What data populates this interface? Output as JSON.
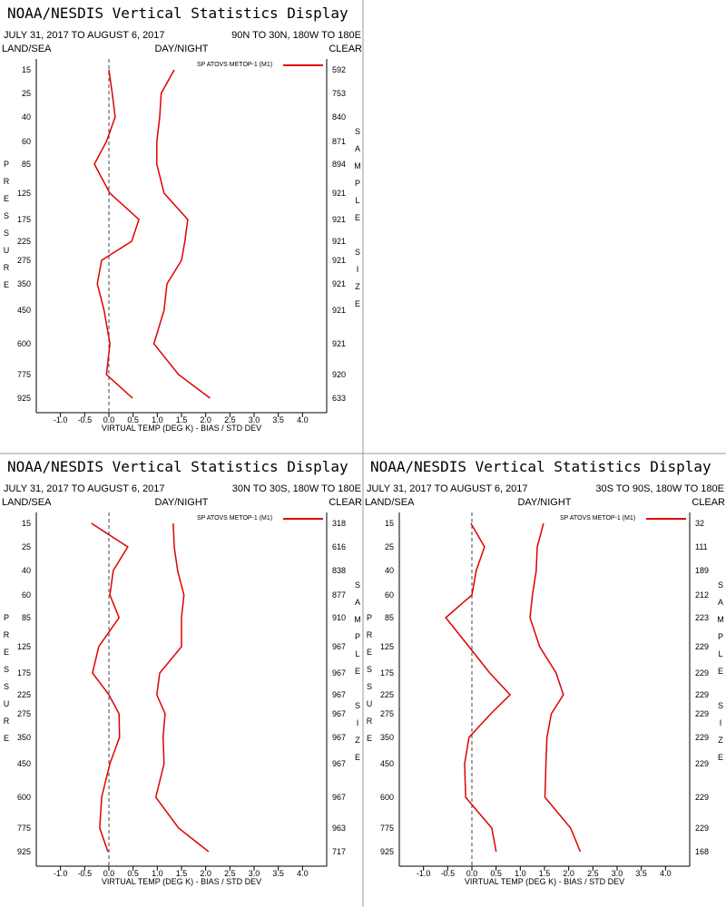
{
  "chart_data": [
    {
      "type": "line",
      "title": "NOAA/NESDIS Vertical Statistics Display",
      "subtitle": "JULY 31, 2017 TO AUGUST 6, 2017",
      "region": "90N TO 30N, 180W TO 180E",
      "left_header": "LAND/SEA",
      "center_header": "DAY/NIGHT",
      "right_header": "CLEAR",
      "y_label": "PRESSURE",
      "y2_label": "SAMPLE SIZE",
      "x_label": "VIRTUAL TEMP (DEG K) - BIAS / STD DEV",
      "categories": [
        "15",
        "25",
        "40",
        "60",
        "85",
        "125",
        "175",
        "225",
        "275",
        "350",
        "450",
        "600",
        "775",
        "925"
      ],
      "sample_size": [
        "592",
        "753",
        "840",
        "871",
        "894",
        "921",
        "921",
        "921",
        "921",
        "921",
        "921",
        "921",
        "920",
        "633"
      ],
      "xlim": [
        -1.5,
        4.5
      ],
      "xticks": [
        {
          "value": -1,
          "label": "-1.0"
        },
        {
          "value": -0.5,
          "label": "-0.5"
        },
        {
          "value": 0,
          "label": "0.0"
        },
        {
          "value": 0.5,
          "label": "0.5"
        },
        {
          "value": 1,
          "label": "1.0"
        },
        {
          "value": 1.5,
          "label": "1.5"
        },
        {
          "value": 2,
          "label": "2.0"
        },
        {
          "value": 2.5,
          "label": "2.5"
        },
        {
          "value": 3,
          "label": "3.0"
        },
        {
          "value": 3.5,
          "label": "3.5"
        },
        {
          "value": 4,
          "label": "4.0"
        }
      ],
      "series": [
        {
          "name": "SP ATOVS METOP-1 (M1)",
          "color": "#e00000",
          "bias": [
            0.0,
            0.07,
            0.13,
            -0.05,
            -0.3,
            0.02,
            0.62,
            0.47,
            -0.15,
            -0.24,
            -0.1,
            0.02,
            -0.05,
            0.49
          ],
          "std_dev": [
            1.35,
            1.08,
            1.05,
            0.99,
            0.99,
            1.14,
            1.63,
            1.57,
            1.5,
            1.2,
            1.14,
            0.93,
            1.44,
            2.09
          ]
        }
      ]
    },
    {
      "type": "line",
      "title": "NOAA/NESDIS Vertical Statistics Display",
      "subtitle": "JULY 31, 2017 TO AUGUST 6, 2017",
      "region": "30N TO 30S, 180W TO 180E",
      "left_header": "LAND/SEA",
      "center_header": "DAY/NIGHT",
      "right_header": "CLEAR",
      "y_label": "PRESSURE",
      "y2_label": "SAMPLE SIZE",
      "x_label": "VIRTUAL TEMP (DEG K) - BIAS / STD DEV",
      "categories": [
        "15",
        "25",
        "40",
        "60",
        "85",
        "125",
        "175",
        "225",
        "275",
        "350",
        "450",
        "600",
        "775",
        "925"
      ],
      "sample_size": [
        "318",
        "616",
        "838",
        "877",
        "910",
        "967",
        "967",
        "967",
        "967",
        "967",
        "967",
        "967",
        "963",
        "717"
      ],
      "xlim": [
        -1.5,
        4.5
      ],
      "xticks": [
        {
          "value": -1,
          "label": "-1.0"
        },
        {
          "value": -0.5,
          "label": "-0.5"
        },
        {
          "value": 0,
          "label": "0.0"
        },
        {
          "value": 0.5,
          "label": "0.5"
        },
        {
          "value": 1,
          "label": "1.0"
        },
        {
          "value": 1.5,
          "label": "1.5"
        },
        {
          "value": 2,
          "label": "2.0"
        },
        {
          "value": 2.5,
          "label": "2.5"
        },
        {
          "value": 3,
          "label": "3.0"
        },
        {
          "value": 3.5,
          "label": "3.5"
        },
        {
          "value": 4,
          "label": "4.0"
        }
      ],
      "series": [
        {
          "name": "SP ATOVS METOP-1 (M1)",
          "color": "#e00000",
          "bias": [
            -0.36,
            0.39,
            0.09,
            0.02,
            0.21,
            -0.21,
            -0.34,
            0.0,
            0.21,
            0.22,
            0.02,
            -0.15,
            -0.19,
            -0.02
          ],
          "std_dev": [
            1.33,
            1.35,
            1.42,
            1.55,
            1.5,
            1.5,
            1.05,
            0.99,
            1.16,
            1.12,
            1.14,
            0.97,
            1.44,
            2.06
          ]
        }
      ]
    },
    {
      "type": "line",
      "title": "NOAA/NESDIS Vertical Statistics Display",
      "subtitle": "JULY 31, 2017 TO AUGUST 6, 2017",
      "region": "30S TO 90S, 180W TO 180E",
      "left_header": "LAND/SEA",
      "center_header": "DAY/NIGHT",
      "right_header": "CLEAR",
      "y_label": "PRESSURE",
      "y2_label": "SAMPLE SIZE",
      "x_label": "VIRTUAL TEMP (DEG K) - BIAS / STD DEV",
      "categories": [
        "15",
        "25",
        "40",
        "60",
        "85",
        "125",
        "175",
        "225",
        "275",
        "350",
        "450",
        "600",
        "775",
        "925"
      ],
      "sample_size": [
        "32",
        "111",
        "189",
        "212",
        "223",
        "229",
        "229",
        "229",
        "229",
        "229",
        "229",
        "229",
        "229",
        "168"
      ],
      "xlim": [
        -1.5,
        4.5
      ],
      "xticks": [
        {
          "value": -1,
          "label": "-1.0"
        },
        {
          "value": -0.5,
          "label": "-0.5"
        },
        {
          "value": 0,
          "label": "0.0"
        },
        {
          "value": 0.5,
          "label": "0.5"
        },
        {
          "value": 1,
          "label": "1.0"
        },
        {
          "value": 1.5,
          "label": "1.5"
        },
        {
          "value": 2,
          "label": "2.0"
        },
        {
          "value": 2.5,
          "label": "2.5"
        },
        {
          "value": 3,
          "label": "3.0"
        },
        {
          "value": 3.5,
          "label": "3.5"
        },
        {
          "value": 4,
          "label": "4.0"
        }
      ],
      "series": [
        {
          "name": "SP ATOVS METOP-1 (M1)",
          "color": "#e00000",
          "bias": [
            -0.02,
            0.26,
            0.09,
            0.0,
            -0.54,
            -0.06,
            0.37,
            0.79,
            0.39,
            -0.06,
            -0.15,
            -0.13,
            0.41,
            0.5
          ],
          "std_dev": [
            1.48,
            1.35,
            1.33,
            1.25,
            1.2,
            1.4,
            1.74,
            1.89,
            1.64,
            1.55,
            1.53,
            1.51,
            2.04,
            2.24
          ]
        }
      ]
    }
  ]
}
